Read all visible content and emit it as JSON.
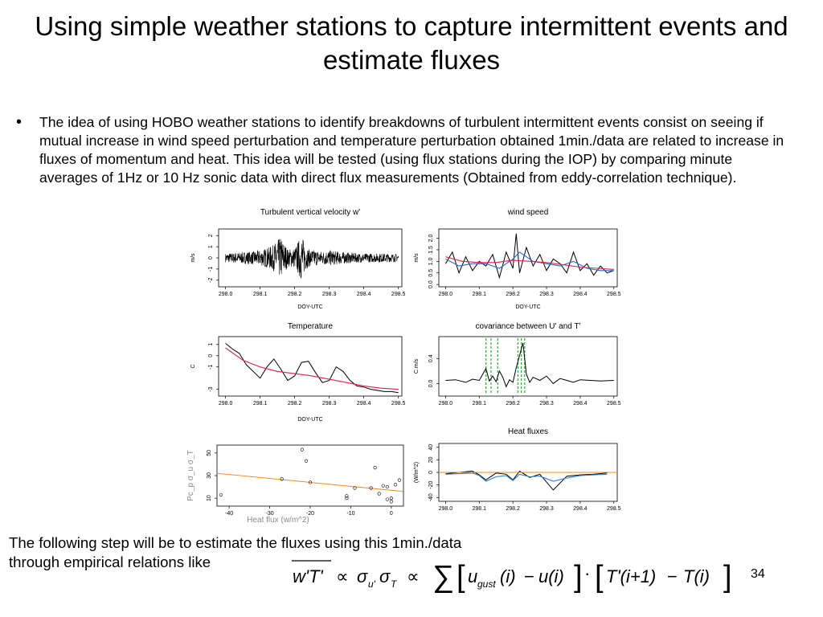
{
  "slide": {
    "title": "Using simple weather stations to capture intermittent events and estimate fluxes",
    "bullet_symbol": "•",
    "bullet_text": "The idea of using HOBO weather stations to identify breakdowns of turbulent intermittent events consist on seeing if mutual increase in wind speed perturbation and temperature perturbation obtained 1min./data are related to increase in fluxes of momentum and heat. This idea will be tested (using flux stations during the IOP) by comparing minute averages of 1Hz or 10 Hz sonic data with direct flux measurements (Obtained from eddy-correlation technique).",
    "following_line1": "The following step will be to estimate the fluxes using this 1min./data",
    "following_line2": "through empirical relations like",
    "slide_number": "34",
    "formula": {
      "lhs": "w'T'",
      "prop": "∝",
      "sigma": "σ",
      "sub_u": "u'",
      "sub_T": "T",
      "sum": "∑",
      "u": "u",
      "gust": "gust",
      "i_arg": "(i)",
      "minus": "−",
      "u_i": "u(i)",
      "dot": "·",
      "T_ip1": "T'(i+1)",
      "T_i": "T(i)",
      "lbr": "[",
      "rbr": "]"
    }
  },
  "chart_data": [
    {
      "type": "line",
      "title": "Turbulent vertical velocity w'",
      "xlabel": "DOY-UTC",
      "ylabel": "m/s",
      "xticks": [
        "298.0",
        "298.1",
        "298.2",
        "298.3",
        "298.4",
        "298.5"
      ],
      "yticks": [
        "-2",
        "-1",
        "0",
        "1",
        "2"
      ],
      "xlim": [
        297.98,
        298.51
      ],
      "ylim": [
        -2.6,
        2.6
      ],
      "series": [
        {
          "color": "#000000",
          "x": [
            298.0,
            298.04,
            298.08,
            298.1,
            298.12,
            298.14,
            298.15,
            298.16,
            298.17,
            298.18,
            298.2,
            298.21,
            298.22,
            298.23,
            298.24,
            298.26,
            298.28,
            298.3,
            298.32,
            298.35,
            298.4,
            298.45,
            298.5
          ],
          "y": [
            0.4,
            0.5,
            0.6,
            0.7,
            0.9,
            1.2,
            1.6,
            1.9,
            1.4,
            0.8,
            0.9,
            1.5,
            2.1,
            1.2,
            0.8,
            0.7,
            0.6,
            0.7,
            0.6,
            0.5,
            0.4,
            0.4,
            0.35
          ],
          "envelope": true
        }
      ]
    },
    {
      "type": "line",
      "title": "wind speed",
      "xlabel": "DOY-UTC",
      "ylabel": "m/s",
      "xticks": [
        "298.0",
        "298.1",
        "298.2",
        "298.3",
        "298.4",
        "298.5"
      ],
      "yticks": [
        "0.0",
        "0.5",
        "1.0",
        "1.5",
        "2.0"
      ],
      "xlim": [
        297.98,
        298.51
      ],
      "ylim": [
        -0.1,
        2.4
      ],
      "series": [
        {
          "color": "#000000",
          "x": [
            298.0,
            298.02,
            298.04,
            298.06,
            298.08,
            298.1,
            298.12,
            298.14,
            298.16,
            298.18,
            298.2,
            298.21,
            298.22,
            298.24,
            298.26,
            298.28,
            298.3,
            298.32,
            298.34,
            298.36,
            298.38,
            298.4,
            298.42,
            298.44,
            298.46,
            298.48,
            298.5
          ],
          "y": [
            0.9,
            1.4,
            0.5,
            1.2,
            0.6,
            1.0,
            0.8,
            1.3,
            0.3,
            1.4,
            0.7,
            2.2,
            0.5,
            1.6,
            0.8,
            1.3,
            0.6,
            1.1,
            0.9,
            0.5,
            1.4,
            0.6,
            0.9,
            0.4,
            0.8,
            0.5,
            0.6
          ]
        },
        {
          "color": "#1f6fd0",
          "x": [
            298.0,
            298.04,
            298.08,
            298.12,
            298.16,
            298.2,
            298.22,
            298.26,
            298.3,
            298.34,
            298.38,
            298.42,
            298.46,
            298.5
          ],
          "y": [
            1.1,
            0.8,
            0.9,
            0.9,
            0.7,
            1.1,
            1.4,
            1.0,
            0.9,
            0.8,
            1.0,
            0.7,
            0.6,
            0.6
          ]
        },
        {
          "color": "#e0204a",
          "x": [
            298.0,
            298.05,
            298.1,
            298.15,
            298.2,
            298.25,
            298.3,
            298.35,
            298.4,
            298.45,
            298.5
          ],
          "y": [
            1.2,
            1.0,
            0.95,
            0.95,
            1.05,
            1.0,
            0.95,
            0.85,
            0.75,
            0.7,
            0.65
          ]
        }
      ]
    },
    {
      "type": "line",
      "title": "Temperature",
      "xlabel": "DOY-UTC",
      "ylabel": "C",
      "xticks": [
        "298.0",
        "298.1",
        "298.2",
        "298.3",
        "298.4",
        "298.5"
      ],
      "yticks": [
        "-3",
        "-1",
        "0",
        "1"
      ],
      "xlim": [
        297.98,
        298.51
      ],
      "ylim": [
        -3.6,
        1.7
      ],
      "series": [
        {
          "color": "#000000",
          "x": [
            298.0,
            298.02,
            298.04,
            298.06,
            298.08,
            298.1,
            298.12,
            298.14,
            298.16,
            298.18,
            298.2,
            298.22,
            298.24,
            298.26,
            298.28,
            298.3,
            298.32,
            298.34,
            298.36,
            298.38,
            298.4,
            298.42,
            298.44,
            298.46,
            298.48,
            298.5
          ],
          "y": [
            1.1,
            0.6,
            0.2,
            -0.8,
            -1.4,
            -2.0,
            -1.0,
            -0.3,
            -1.2,
            -2.2,
            -1.8,
            -0.6,
            -0.5,
            -1.5,
            -2.4,
            -2.2,
            -1.0,
            -1.4,
            -2.2,
            -2.7,
            -2.8,
            -3.0,
            -3.1,
            -3.2,
            -3.2,
            -3.3
          ]
        },
        {
          "color": "#e0204a",
          "x": [
            298.0,
            298.05,
            298.1,
            298.15,
            298.2,
            298.25,
            298.3,
            298.35,
            298.4,
            298.45,
            298.5
          ],
          "y": [
            0.7,
            -0.4,
            -1.0,
            -1.4,
            -1.6,
            -1.8,
            -2.1,
            -2.4,
            -2.7,
            -2.9,
            -3.0
          ]
        }
      ]
    },
    {
      "type": "line",
      "title": "covariance between U' and T'",
      "xlabel": "",
      "ylabel": "C.m/s",
      "xticks": [
        "298.0",
        "298.1",
        "298.2",
        "298.3",
        "298.4",
        "298.5"
      ],
      "yticks": [
        "0.0",
        "0.4"
      ],
      "xlim": [
        297.98,
        298.51
      ],
      "ylim": [
        -0.2,
        0.75
      ],
      "series": [
        {
          "color": "#000000",
          "x": [
            298.0,
            298.03,
            298.06,
            298.08,
            298.1,
            298.12,
            298.13,
            298.14,
            298.15,
            298.16,
            298.17,
            298.18,
            298.19,
            298.2,
            298.21,
            298.22,
            298.23,
            298.24,
            298.25,
            298.26,
            298.28,
            298.3,
            298.32,
            298.34,
            298.36,
            298.38,
            298.4,
            298.43,
            298.46,
            298.5
          ],
          "y": [
            0.05,
            0.06,
            0.02,
            0.07,
            0.05,
            0.24,
            0.04,
            0.12,
            0.03,
            0.2,
            0.1,
            -0.05,
            0.06,
            0.02,
            0.25,
            0.45,
            0.65,
            0.15,
            0.02,
            0.1,
            0.05,
            0.12,
            0.0,
            0.08,
            0.05,
            0.02,
            0.06,
            0.05,
            0.04,
            0.05
          ]
        }
      ],
      "highlight_x": [
        298.12,
        298.135,
        298.155,
        298.215,
        298.225,
        298.235
      ],
      "highlight_color": "#2eaa2e"
    },
    {
      "type": "scatter",
      "title": "",
      "xlabel": "Heat flux (w/m^2)",
      "ylabel": "Pc_p σ_u σ_T",
      "xticks": [
        "-40",
        "-30",
        "-20",
        "-10",
        "0"
      ],
      "yticks": [
        "10",
        "30",
        "50"
      ],
      "xlim": [
        -43,
        3
      ],
      "ylim": [
        3,
        57
      ],
      "points": [
        [
          -42,
          13
        ],
        [
          -27,
          27
        ],
        [
          -22,
          53
        ],
        [
          -21,
          43
        ],
        [
          -20,
          24
        ],
        [
          -11,
          12
        ],
        [
          -11,
          10
        ],
        [
          -9,
          19
        ],
        [
          -5,
          19
        ],
        [
          -4,
          37
        ],
        [
          -3,
          14
        ],
        [
          -2,
          21
        ],
        [
          -1,
          20
        ],
        [
          -1,
          9
        ],
        [
          0,
          7
        ],
        [
          0,
          10
        ],
        [
          1,
          22
        ],
        [
          2,
          26
        ]
      ],
      "fit_line": {
        "color": "#f08a1a",
        "x": [
          -43,
          3
        ],
        "y": [
          32,
          16
        ]
      }
    },
    {
      "type": "line",
      "title": "Heat fluxes",
      "xlabel": "",
      "ylabel": "(W/m^2)",
      "xticks": [
        "298.0",
        "298.1",
        "298.2",
        "298.3",
        "298.4",
        "298.5"
      ],
      "yticks": [
        "-40",
        "-20",
        "0",
        "20",
        "40"
      ],
      "xlim": [
        297.98,
        298.51
      ],
      "ylim": [
        -46,
        46
      ],
      "series": [
        {
          "color": "#000000",
          "x": [
            298.0,
            298.04,
            298.08,
            298.1,
            298.12,
            298.15,
            298.18,
            298.2,
            298.22,
            298.25,
            298.28,
            298.32,
            298.36,
            298.4,
            298.44,
            298.48
          ],
          "y": [
            -2,
            0,
            2,
            -4,
            -12,
            -1,
            -3,
            -12,
            2,
            -8,
            -3,
            -28,
            -6,
            -4,
            -3,
            -1
          ]
        },
        {
          "color": "#2a7fd6",
          "x": [
            298.0,
            298.04,
            298.08,
            298.1,
            298.12,
            298.15,
            298.18,
            298.2,
            298.22,
            298.25,
            298.28,
            298.32,
            298.36,
            298.4,
            298.44,
            298.48
          ],
          "y": [
            -3,
            -2,
            -1,
            -5,
            -14,
            -7,
            -5,
            -13,
            -3,
            -7,
            -6,
            -14,
            -9,
            -5,
            -4,
            -3
          ]
        },
        {
          "color": "#f08a1a",
          "x": [
            297.98,
            298.51
          ],
          "y": [
            0,
            0
          ]
        }
      ]
    }
  ]
}
